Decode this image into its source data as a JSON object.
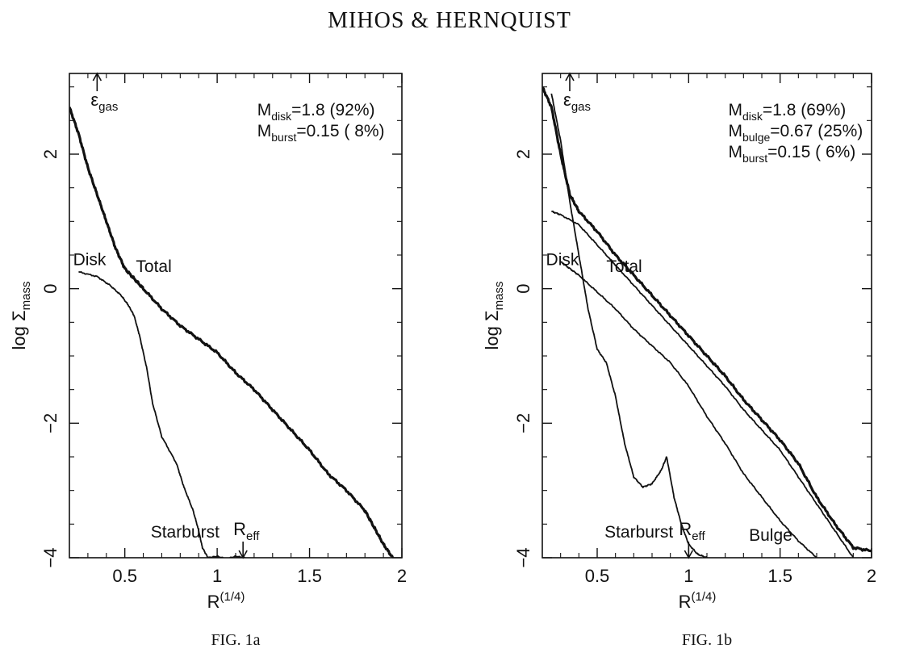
{
  "header": {
    "title": "MIHOS & HERNQUIST"
  },
  "chart_data": [
    {
      "type": "line",
      "caption": "FIG. 1a",
      "xlabel": "R",
      "xlabel_sup": "(1/4)",
      "ylabel": "log Σ",
      "ylabel_sub": "mass",
      "xlim": [
        0.2,
        2.0
      ],
      "ylim": [
        -4.0,
        3.2
      ],
      "xticks": [
        0.5,
        1.0,
        1.5,
        2.0
      ],
      "xtick_labels": [
        "0.5",
        "1",
        "1.5",
        "2"
      ],
      "yticks": [
        -4,
        -2,
        0,
        2
      ],
      "ytick_labels": [
        "−4",
        "−2",
        "0",
        "2"
      ],
      "markers": [
        {
          "label": "ε",
          "label_sub": "gas",
          "x": 0.35,
          "direction": "up",
          "edge": "top"
        },
        {
          "label": "R",
          "label_sub": "eff",
          "x": 1.14,
          "direction": "down",
          "edge": "bottom"
        }
      ],
      "legend_lines": [
        {
          "main": "M",
          "sub": "disk",
          "text": "=1.8   (92%)"
        },
        {
          "main": "M",
          "sub": "burst",
          "text": "=0.15  ( 8%)"
        }
      ],
      "series": [
        {
          "name": "Total",
          "label_x": 0.56,
          "label_y": 0.25,
          "thick": true,
          "x": [
            0.2,
            0.25,
            0.3,
            0.35,
            0.4,
            0.45,
            0.5,
            0.55,
            0.6,
            0.7,
            0.8,
            0.9,
            1.0,
            1.1,
            1.2,
            1.3,
            1.4,
            1.5,
            1.6,
            1.7,
            1.8,
            1.85,
            1.9,
            1.95
          ],
          "y": [
            2.7,
            2.3,
            1.8,
            1.4,
            1.0,
            0.6,
            0.3,
            0.15,
            0.0,
            -0.3,
            -0.55,
            -0.75,
            -0.95,
            -1.25,
            -1.5,
            -1.8,
            -2.1,
            -2.4,
            -2.75,
            -3.0,
            -3.3,
            -3.55,
            -3.8,
            -4.0
          ]
        },
        {
          "name": "Disk",
          "label_x": 0.22,
          "label_y": 0.35,
          "thick": false,
          "x": [
            0.25,
            0.35,
            0.42,
            0.48,
            0.52,
            0.55,
            0.58,
            0.62,
            0.65,
            0.7,
            0.78,
            0.82,
            0.87,
            0.9,
            0.92,
            0.95,
            1.0,
            1.05,
            1.1,
            1.15
          ],
          "y": [
            0.25,
            0.18,
            0.05,
            -0.1,
            -0.25,
            -0.4,
            -0.7,
            -1.2,
            -1.7,
            -2.2,
            -2.6,
            -2.95,
            -3.3,
            -3.6,
            -3.85,
            -4.0,
            -3.98,
            -4.02,
            -3.98,
            -4.0
          ]
        },
        {
          "name": "Starburst",
          "label_x": 0.64,
          "label_y": -3.7,
          "thick": false,
          "x": [],
          "y": []
        }
      ]
    },
    {
      "type": "line",
      "caption": "FIG. 1b",
      "xlabel": "R",
      "xlabel_sup": "(1/4)",
      "ylabel": "log Σ",
      "ylabel_sub": "mass",
      "xlim": [
        0.2,
        2.0
      ],
      "ylim": [
        -4.0,
        3.2
      ],
      "xticks": [
        0.5,
        1.0,
        1.5,
        2.0
      ],
      "xtick_labels": [
        "0.5",
        "1",
        "1.5",
        "2"
      ],
      "yticks": [
        -4,
        -2,
        0,
        2
      ],
      "ytick_labels": [
        "−4",
        "−2",
        "0",
        "2"
      ],
      "markers": [
        {
          "label": "ε",
          "label_sub": "gas",
          "x": 0.35,
          "direction": "up",
          "edge": "top"
        },
        {
          "label": "R",
          "label_sub": "eff",
          "x": 1.0,
          "direction": "down",
          "edge": "bottom"
        }
      ],
      "legend_lines": [
        {
          "main": "M",
          "sub": "disk",
          "text": "=1.8   (69%)"
        },
        {
          "main": "M",
          "sub": "bulge",
          "text": "=0.67 (25%)"
        },
        {
          "main": "M",
          "sub": "burst",
          "text": "=0.15  ( 6%)"
        }
      ],
      "series": [
        {
          "name": "Total",
          "label_x": 0.55,
          "label_y": 0.25,
          "thick": true,
          "x": [
            0.2,
            0.25,
            0.3,
            0.35,
            0.4,
            0.5,
            0.6,
            0.7,
            0.8,
            0.9,
            1.0,
            1.1,
            1.2,
            1.3,
            1.4,
            1.5,
            1.6,
            1.7,
            1.8,
            1.9,
            2.0
          ],
          "y": [
            3.0,
            2.7,
            2.0,
            1.4,
            1.15,
            0.85,
            0.5,
            0.2,
            -0.1,
            -0.4,
            -0.7,
            -1.0,
            -1.3,
            -1.65,
            -1.95,
            -2.25,
            -2.6,
            -3.1,
            -3.5,
            -3.85,
            -3.9
          ]
        },
        {
          "name": "Bulge",
          "label_x": 1.33,
          "label_y": -3.75,
          "thick": false,
          "x": [
            0.25,
            0.3,
            0.4,
            0.5,
            0.6,
            0.7,
            0.8,
            0.9,
            1.0,
            1.1,
            1.2,
            1.3,
            1.4,
            1.5,
            1.6,
            1.7,
            1.8,
            1.9
          ],
          "y": [
            1.15,
            1.1,
            0.95,
            0.65,
            0.35,
            0.05,
            -0.25,
            -0.55,
            -0.85,
            -1.15,
            -1.45,
            -1.8,
            -2.1,
            -2.4,
            -2.8,
            -3.2,
            -3.6,
            -4.0
          ]
        },
        {
          "name": "Disk",
          "label_x": 0.22,
          "label_y": 0.35,
          "thick": false,
          "x": [
            0.3,
            0.35,
            0.4,
            0.5,
            0.6,
            0.7,
            0.8,
            0.9,
            1.0,
            1.1,
            1.2,
            1.3,
            1.4,
            1.5,
            1.6,
            1.7
          ],
          "y": [
            0.4,
            0.3,
            0.2,
            -0.05,
            -0.3,
            -0.6,
            -0.85,
            -1.1,
            -1.45,
            -1.9,
            -2.3,
            -2.75,
            -3.1,
            -3.45,
            -3.75,
            -4.0
          ]
        },
        {
          "name": "Starburst",
          "label_x": 0.54,
          "label_y": -3.7,
          "thick": false,
          "x": [
            0.25,
            0.3,
            0.35,
            0.4,
            0.45,
            0.5,
            0.55,
            0.6,
            0.65,
            0.7,
            0.75,
            0.8,
            0.85,
            0.88,
            0.92,
            0.96,
            1.0,
            1.05,
            1.1
          ],
          "y": [
            2.9,
            2.2,
            1.3,
            0.5,
            -0.3,
            -0.9,
            -1.1,
            -1.6,
            -2.3,
            -2.8,
            -2.95,
            -2.9,
            -2.7,
            -2.5,
            -3.1,
            -3.5,
            -3.8,
            -3.95,
            -4.0
          ]
        }
      ]
    }
  ]
}
